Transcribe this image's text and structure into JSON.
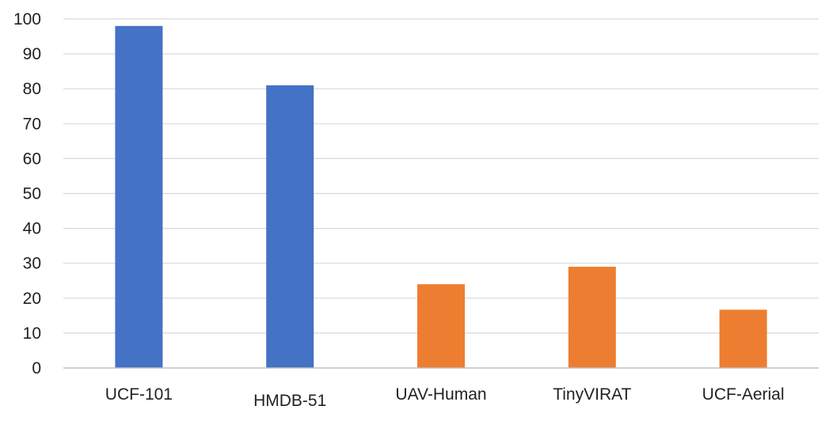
{
  "chart_data": {
    "type": "bar",
    "title": "",
    "xlabel": "",
    "ylabel": "",
    "categories": [
      "UCF-101",
      "HMDB-51",
      "UAV-Human",
      "TinyVIRAT",
      "UCF-Aerial"
    ],
    "values": [
      98,
      81,
      24,
      29,
      16.7
    ],
    "bar_colors": [
      "#4472C4",
      "#4472C4",
      "#ED7D31",
      "#ED7D31",
      "#ED7D31"
    ],
    "ylim": [
      0,
      100
    ],
    "yticks": [
      0,
      10,
      20,
      30,
      40,
      50,
      60,
      70,
      80,
      90,
      100
    ],
    "grid": true,
    "legend": "none"
  },
  "colors": {
    "gridline": "#d9d9d9",
    "axis": "#c0c0c0",
    "text": "#222222"
  }
}
